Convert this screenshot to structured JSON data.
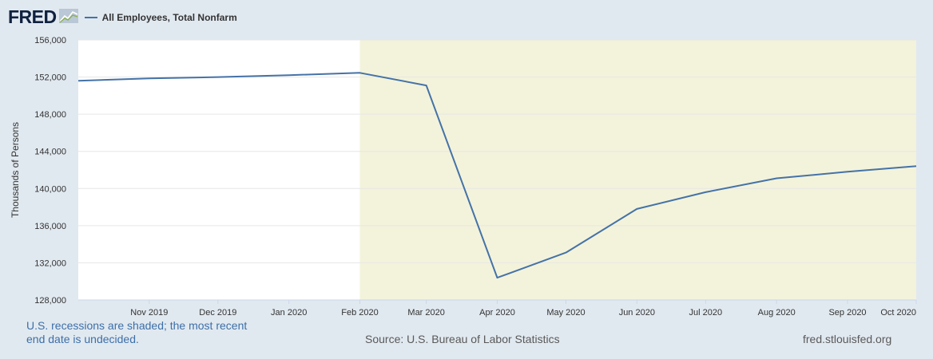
{
  "header": {
    "logo": "FRED",
    "legend_label": "All Employees, Total Nonfarm"
  },
  "chart_data": {
    "type": "line",
    "title": "",
    "xlabel": "",
    "ylabel": "Thousands of Persons",
    "x_tick_labels": [
      "Nov 2019",
      "Dec 2019",
      "Jan 2020",
      "Feb 2020",
      "Mar 2020",
      "Apr 2020",
      "May 2020",
      "Jun 2020",
      "Jul 2020",
      "Aug 2020",
      "Sep 2020",
      "Oct 2020"
    ],
    "y_tick_labels": [
      "128,000",
      "132,000",
      "136,000",
      "140,000",
      "144,000",
      "148,000",
      "152,000",
      "156,000"
    ],
    "ylim": [
      128000,
      156000
    ],
    "grid": true,
    "recession_shading": {
      "start": "2020-02-01",
      "end": "2020-10-01",
      "color": "#f3f3db"
    },
    "series": [
      {
        "name": "All Employees, Total Nonfarm",
        "color": "#4572a7",
        "points": [
          {
            "x": "2019-10-01",
            "y": 151600
          },
          {
            "x": "2019-11-01",
            "y": 151850
          },
          {
            "x": "2019-12-01",
            "y": 152000
          },
          {
            "x": "2020-01-01",
            "y": 152200
          },
          {
            "x": "2020-02-01",
            "y": 152450
          },
          {
            "x": "2020-03-01",
            "y": 151100
          },
          {
            "x": "2020-04-01",
            "y": 130400
          },
          {
            "x": "2020-05-01",
            "y": 133100
          },
          {
            "x": "2020-06-01",
            "y": 137800
          },
          {
            "x": "2020-07-01",
            "y": 139600
          },
          {
            "x": "2020-08-01",
            "y": 141100
          },
          {
            "x": "2020-09-01",
            "y": 141800
          },
          {
            "x": "2020-10-01",
            "y": 142400
          }
        ]
      }
    ]
  },
  "footer": {
    "note": "U.S. recessions are shaded; the most recent end date is undecided.",
    "source": "Source: U.S. Bureau of Labor Statistics",
    "site": "fred.stlouisfed.org"
  }
}
